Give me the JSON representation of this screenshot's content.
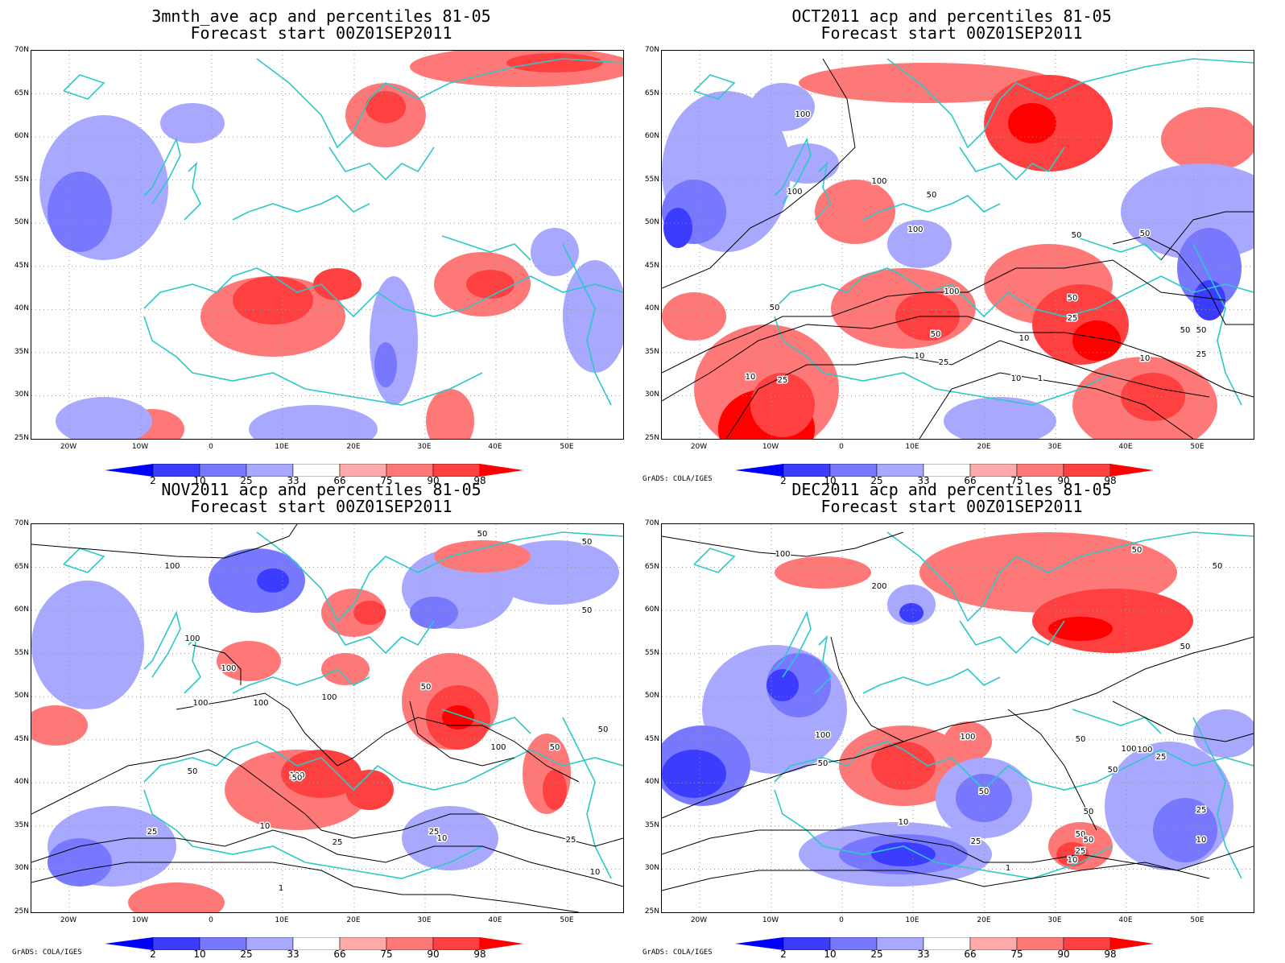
{
  "panels": [
    {
      "id": "p1",
      "title1": "3mnth_ave acp and percentiles 81-05",
      "title2": "Forecast start 00Z01SEP2011",
      "credit": "",
      "contour_labels": []
    },
    {
      "id": "p2",
      "title1": "OCT2011 acp and percentiles 81-05",
      "title2": "Forecast start 00Z01SEP2011",
      "credit": "GrADS: COLA/IGES",
      "contour_labels": [
        "100",
        "100",
        "100",
        "50",
        "100",
        "100",
        "50",
        "50",
        "50",
        "50",
        "50",
        "25",
        "10",
        "10",
        "25",
        "10",
        "25",
        "50",
        "25",
        "10",
        "1",
        "10",
        "25",
        "50"
      ]
    },
    {
      "id": "p3",
      "title1": "NOV2011 acp and percentiles 81-05",
      "title2": "Forecast start 00Z01SEP2011",
      "credit": "GrADS: COLA/IGES",
      "contour_labels": [
        "100",
        "100",
        "100",
        "100",
        "100",
        "50",
        "50",
        "100",
        "50",
        "100",
        "50",
        "100",
        "50",
        "50",
        "25",
        "10",
        "25",
        "25",
        "10",
        "25",
        "10",
        "1",
        "50",
        "50"
      ]
    },
    {
      "id": "p4",
      "title1": "DEC2011 acp and percentiles 81-05",
      "title2": "Forecast start 00Z01SEP2011",
      "credit": "GrADS: COLA/IGES",
      "contour_labels": [
        "100",
        "200",
        "50",
        "50",
        "50",
        "100",
        "50",
        "100",
        "100",
        "50",
        "50",
        "100",
        "25",
        "50",
        "50",
        "10",
        "25",
        "1",
        "50",
        "25",
        "10",
        "25",
        "10",
        "50"
      ]
    }
  ],
  "lat_labels": [
    "70N",
    "65N",
    "60N",
    "55N",
    "50N",
    "45N",
    "40N",
    "35N",
    "30N",
    "25N"
  ],
  "lon_labels": [
    "20W",
    "10W",
    "0",
    "10E",
    "20E",
    "30E",
    "40E",
    "50E"
  ],
  "colorbar": {
    "labels": [
      "2",
      "10",
      "25",
      "33",
      "66",
      "75",
      "90",
      "98"
    ],
    "colors": [
      "#0000ff",
      "#3c3cff",
      "#7878ff",
      "#a8a8ff",
      "#ffffff",
      "#ffaaaa",
      "#ff7878",
      "#ff4040",
      "#ff0000"
    ]
  },
  "colors": {
    "coast": "#2ec8c8",
    "contour": "#000000"
  }
}
